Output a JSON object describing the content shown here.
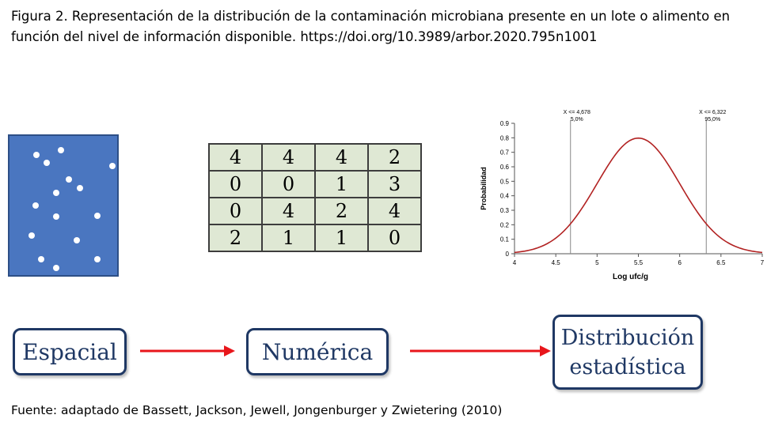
{
  "caption": "Figura 2. Representación de la distribución de la contaminación microbiana presente en un lote o alimento en función del nivel de información disponible. https://doi.org/10.3989/arbor.2020.795n1001",
  "source": "Fuente: adaptado de Bassett, Jackson, Jewell, Jongenburger y Zwietering (2010)",
  "grid": [
    [
      "4",
      "4",
      "4",
      "2"
    ],
    [
      "0",
      "0",
      "1",
      "3"
    ],
    [
      "0",
      "4",
      "2",
      "4"
    ],
    [
      "2",
      "1",
      "1",
      "0"
    ]
  ],
  "stages": {
    "spatial": "Espacial",
    "numeric": "Numérica",
    "statistical": "Distribución\nestadística"
  },
  "colors": {
    "panel_fill": "#4a76c0",
    "grid_fill": "#dfe8d4",
    "arrow": "#e8161b",
    "box_border": "#1f3864",
    "curve": "#b22222"
  },
  "chart_data": {
    "type": "line",
    "xlabel": "Log ufc/g",
    "ylabel": "Probabilidad",
    "xlim": [
      4,
      7
    ],
    "ylim": [
      0,
      0.9
    ],
    "xticks": [
      "4",
      "4.5",
      "5",
      "5.5",
      "6",
      "6.5",
      "7"
    ],
    "yticks": [
      "0",
      "0.1",
      "0.2",
      "0.3",
      "0.4",
      "0.5",
      "0.6",
      "0.7",
      "0.8",
      "0.9"
    ],
    "distribution": {
      "mean": 5.5,
      "sd": 0.5
    },
    "markers": [
      {
        "x": 4.678,
        "label_top": "X <= 4,678",
        "label_bottom": "5,0%"
      },
      {
        "x": 6.322,
        "label_top": "X <= 6,322",
        "label_bottom": "95,0%"
      }
    ]
  }
}
